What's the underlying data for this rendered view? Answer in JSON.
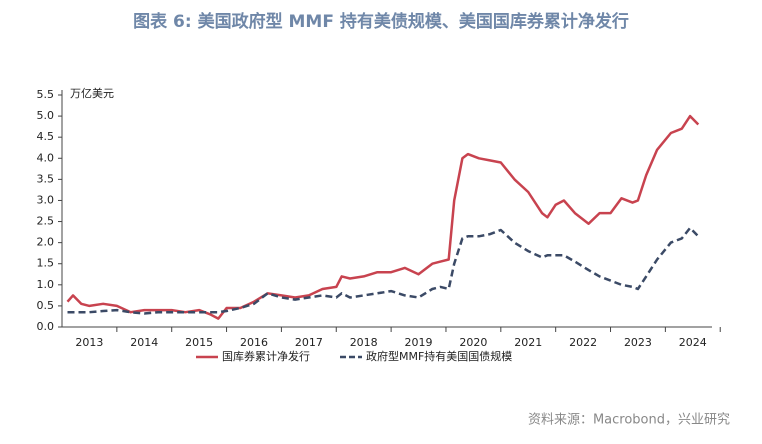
{
  "chart_data": {
    "type": "line",
    "title": "图表 6:  美国政府型 MMF 持有美债规模、美国国库券累计净发行",
    "y_unit": "万亿美元",
    "source": "资料来源：Macrobond，兴业研究",
    "x": [
      2013.1,
      2013.2,
      2013.35,
      2013.5,
      2013.75,
      2014.0,
      2014.25,
      2014.5,
      2014.75,
      2015.0,
      2015.25,
      2015.5,
      2015.7,
      2015.85,
      2016.0,
      2016.25,
      2016.5,
      2016.75,
      2017.0,
      2017.25,
      2017.5,
      2017.75,
      2018.0,
      2018.1,
      2018.25,
      2018.5,
      2018.75,
      2019.0,
      2019.25,
      2019.5,
      2019.75,
      2019.9,
      2020.05,
      2020.15,
      2020.3,
      2020.4,
      2020.6,
      2020.8,
      2021.0,
      2021.25,
      2021.5,
      2021.75,
      2021.85,
      2022.0,
      2022.15,
      2022.35,
      2022.6,
      2022.8,
      2023.0,
      2023.2,
      2023.4,
      2023.5,
      2023.65,
      2023.85,
      2024.1,
      2024.3,
      2024.45,
      2024.6
    ],
    "series": [
      {
        "name": "国库券累计净发行",
        "color": "#c8434f",
        "dash": false,
        "values": [
          0.6,
          0.75,
          0.55,
          0.5,
          0.55,
          0.5,
          0.35,
          0.4,
          0.4,
          0.4,
          0.35,
          0.4,
          0.3,
          0.2,
          0.45,
          0.45,
          0.6,
          0.8,
          0.75,
          0.7,
          0.75,
          0.9,
          0.95,
          1.2,
          1.15,
          1.2,
          1.3,
          1.3,
          1.4,
          1.25,
          1.5,
          1.55,
          1.6,
          3.0,
          4.0,
          4.1,
          4.0,
          3.95,
          3.9,
          3.5,
          3.2,
          2.7,
          2.6,
          2.9,
          3.0,
          2.7,
          2.45,
          2.7,
          2.7,
          3.05,
          2.95,
          3.0,
          3.6,
          4.2,
          4.6,
          4.7,
          5.0,
          4.8
        ]
      },
      {
        "name": "政府型MMF持有美国国债规模",
        "color": "#3b4a66",
        "dash": true,
        "values": [
          0.35,
          0.35,
          0.35,
          0.35,
          0.38,
          0.4,
          0.35,
          0.32,
          0.35,
          0.35,
          0.35,
          0.35,
          0.35,
          0.35,
          0.38,
          0.45,
          0.55,
          0.8,
          0.7,
          0.65,
          0.7,
          0.75,
          0.7,
          0.8,
          0.7,
          0.75,
          0.8,
          0.85,
          0.75,
          0.7,
          0.9,
          0.95,
          0.9,
          1.5,
          2.1,
          2.15,
          2.15,
          2.2,
          2.3,
          2.0,
          1.8,
          1.65,
          1.7,
          1.7,
          1.7,
          1.55,
          1.35,
          1.2,
          1.1,
          1.0,
          0.95,
          0.9,
          1.2,
          1.6,
          2.0,
          2.1,
          2.35,
          2.15
        ]
      }
    ],
    "xlim": [
      2013,
      2024.85
    ],
    "xticks": [
      {
        "value": 2013.5,
        "label": "2013"
      },
      {
        "value": 2014.5,
        "label": "2014"
      },
      {
        "value": 2015.5,
        "label": "2015"
      },
      {
        "value": 2016.5,
        "label": "2016"
      },
      {
        "value": 2017.5,
        "label": "2017"
      },
      {
        "value": 2018.5,
        "label": "2018"
      },
      {
        "value": 2019.5,
        "label": "2019"
      },
      {
        "value": 2020.5,
        "label": "2020"
      },
      {
        "value": 2021.5,
        "label": "2021"
      },
      {
        "value": 2022.5,
        "label": "2022"
      },
      {
        "value": 2023.5,
        "label": "2023"
      },
      {
        "value": 2024.5,
        "label": "2024"
      }
    ],
    "ylim": [
      0,
      5.5
    ],
    "yticks": [
      {
        "value": 0,
        "label": "0.0"
      },
      0.5,
      {
        "value": 1,
        "label": "1.0"
      },
      1.5,
      {
        "value": 2,
        "label": "2.0"
      },
      2.5,
      {
        "value": 3,
        "label": "3.0"
      },
      3.5,
      {
        "value": 4,
        "label": "4.0"
      },
      4.5,
      {
        "value": 5,
        "label": "5.0"
      },
      5.5
    ]
  }
}
